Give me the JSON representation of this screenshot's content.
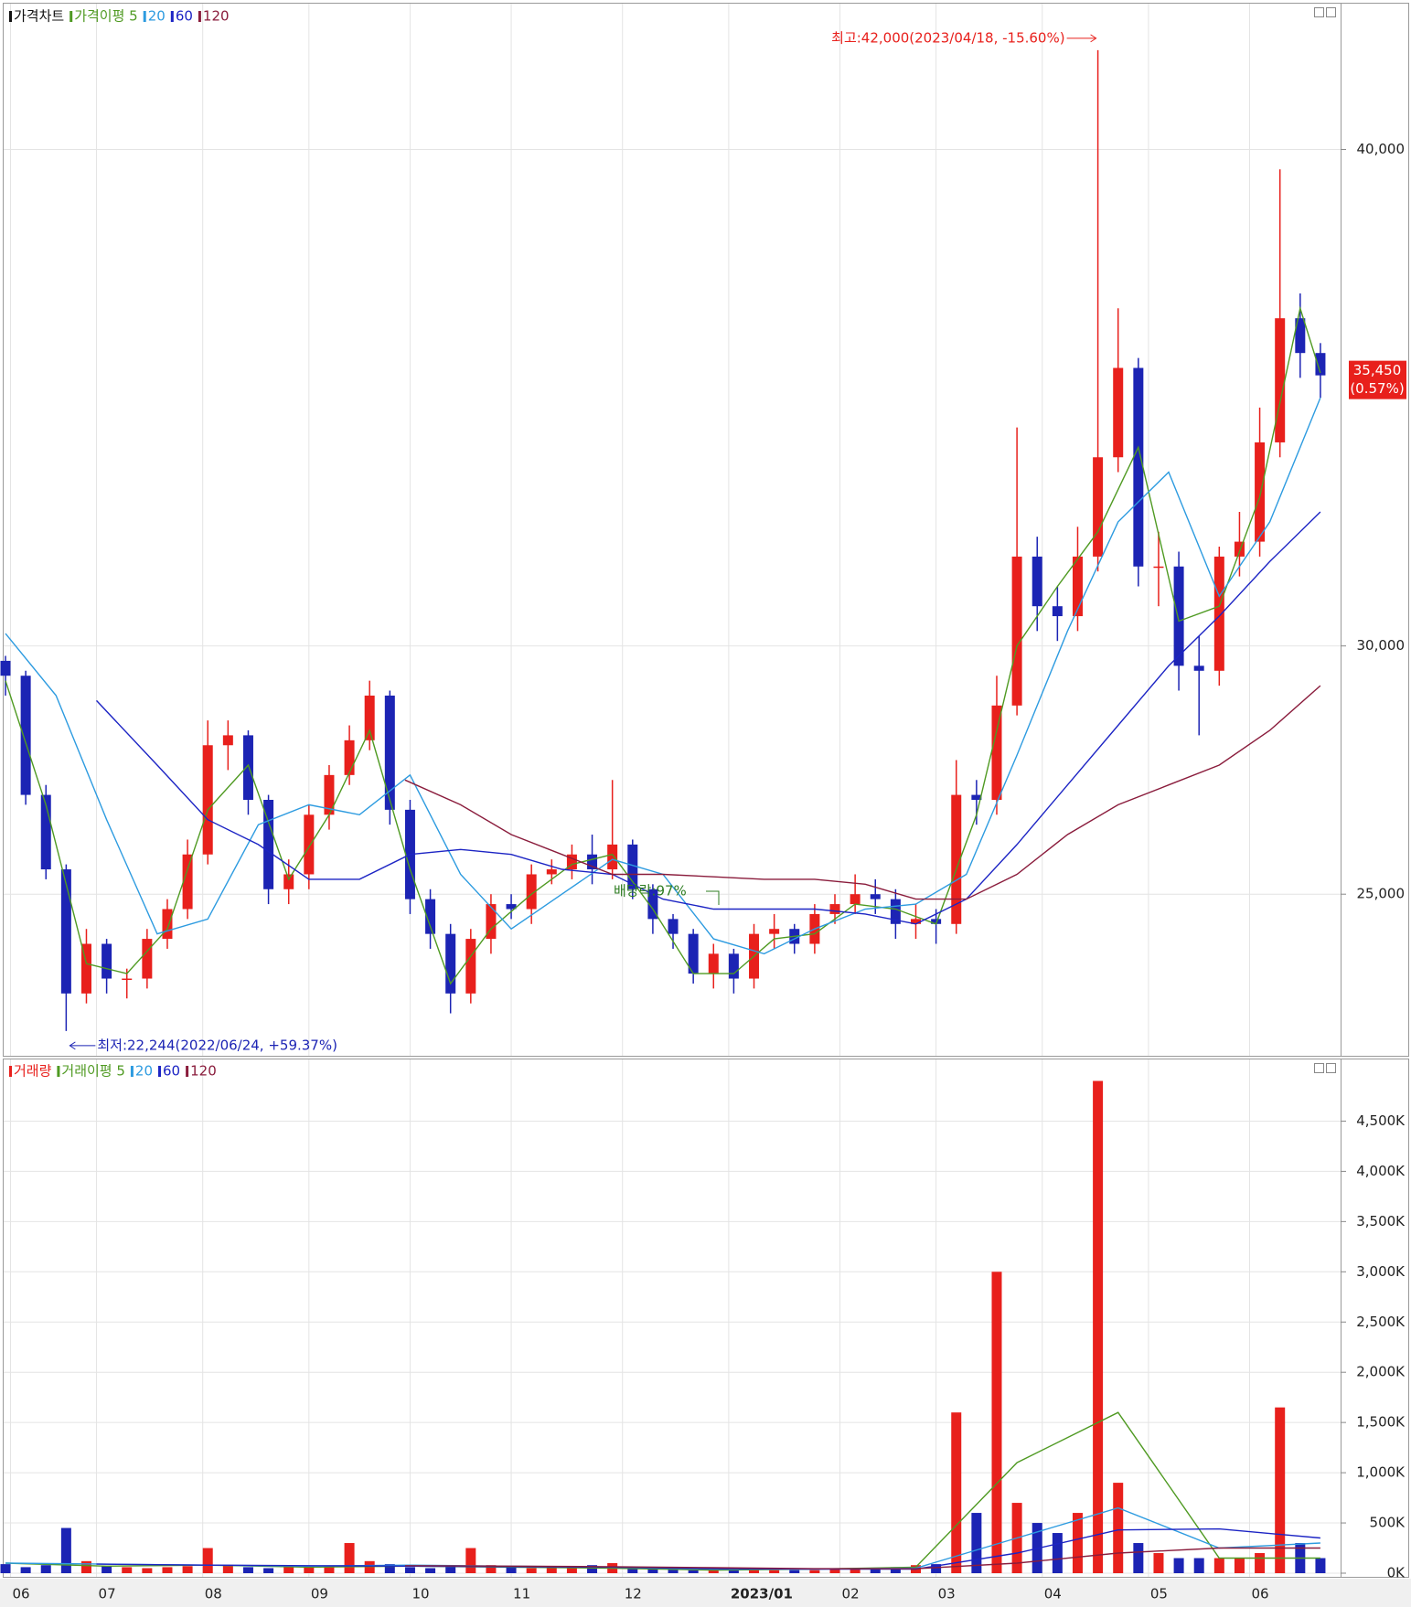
{
  "chart_data": [
    {
      "type": "candlestick",
      "name": "가격차트",
      "x": [
        0,
        4,
        8,
        12,
        16,
        20,
        24,
        28,
        32,
        36,
        40,
        44,
        48,
        52,
        56,
        60,
        64,
        68,
        72,
        76,
        80,
        84,
        88,
        92,
        96,
        100,
        104,
        108,
        112,
        116,
        120,
        124,
        128,
        132,
        136,
        140,
        144,
        148,
        152,
        156,
        160,
        164,
        168,
        172,
        176,
        180,
        184,
        188,
        192,
        196,
        200,
        204,
        208,
        212,
        216,
        220,
        224,
        228,
        232,
        236,
        240,
        244,
        248,
        252,
        256,
        260
      ],
      "open": [
        29700,
        29400,
        27000,
        25500,
        23000,
        24000,
        23300,
        23300,
        24100,
        24700,
        25800,
        28000,
        28200,
        26900,
        25100,
        25400,
        26600,
        27400,
        28100,
        29000,
        26700,
        24900,
        24200,
        23000,
        24100,
        24800,
        24700,
        25400,
        25500,
        25800,
        25500,
        26000,
        25100,
        24500,
        24200,
        23400,
        23800,
        23300,
        24200,
        24300,
        24000,
        24600,
        24800,
        25000,
        24900,
        24400,
        24500,
        24400,
        27000,
        26900,
        28800,
        31800,
        30800,
        30600,
        31800,
        33800,
        35600,
        31600,
        31600,
        29600,
        29500,
        31800,
        32100,
        34100,
        36600,
        35900
      ],
      "high": [
        29800,
        29500,
        27200,
        25600,
        24300,
        24100,
        23500,
        24300,
        24900,
        26100,
        28500,
        28500,
        28300,
        27000,
        25700,
        26800,
        27600,
        28400,
        29300,
        29100,
        26900,
        25100,
        24400,
        24300,
        25000,
        25000,
        25600,
        25700,
        26000,
        26200,
        27300,
        26100,
        25200,
        24600,
        24300,
        24000,
        23900,
        24400,
        24600,
        24400,
        24800,
        25000,
        25400,
        25300,
        25100,
        24800,
        24700,
        27700,
        27300,
        29400,
        34400,
        32200,
        31200,
        32400,
        42000,
        36800,
        35800,
        32300,
        31900,
        30200,
        32000,
        32700,
        34800,
        39600,
        37100,
        36100
      ],
      "low": [
        29000,
        26800,
        25300,
        22244,
        22800,
        23000,
        22900,
        23100,
        23900,
        24500,
        25600,
        27500,
        26600,
        24800,
        24800,
        25100,
        26300,
        27200,
        27900,
        26400,
        24600,
        23900,
        22600,
        22800,
        23800,
        24500,
        24400,
        25200,
        25300,
        25200,
        25300,
        24900,
        24200,
        23900,
        23200,
        23100,
        23000,
        23100,
        23900,
        23800,
        23800,
        24400,
        24600,
        24600,
        24100,
        24100,
        24000,
        24200,
        26400,
        26600,
        28600,
        30300,
        30100,
        30300,
        31500,
        33500,
        31200,
        30800,
        29100,
        28200,
        29200,
        31400,
        31800,
        33800,
        35400,
        35000
      ],
      "close": [
        29400,
        27000,
        25500,
        23000,
        24000,
        23300,
        23300,
        24100,
        24700,
        25800,
        28000,
        28200,
        26900,
        25100,
        25400,
        26600,
        27400,
        28100,
        29000,
        26700,
        24900,
        24200,
        23000,
        24100,
        24800,
        24700,
        25400,
        25500,
        25800,
        25500,
        26000,
        25100,
        24500,
        24200,
        23400,
        23800,
        23300,
        24200,
        24300,
        24000,
        24600,
        24800,
        25000,
        24900,
        24400,
        24500,
        24400,
        27000,
        26900,
        28800,
        31800,
        30800,
        30600,
        31800,
        33800,
        35600,
        31600,
        31600,
        29600,
        29500,
        31800,
        32100,
        34100,
        36600,
        35900,
        35450
      ],
      "up_color": "#e8201c",
      "down_color": "#1c24b4",
      "series": [
        {
          "name": "가격이평 5",
          "color": "#4f9a22",
          "x": [
            0,
            8,
            16,
            24,
            32,
            40,
            48,
            56,
            64,
            72,
            80,
            88,
            96,
            104,
            112,
            120,
            128,
            136,
            144,
            152,
            160,
            168,
            176,
            184,
            192,
            200,
            208,
            216,
            224,
            232,
            240,
            248,
            256,
            260
          ],
          "values": [
            29300,
            26800,
            23600,
            23400,
            24300,
            26700,
            27600,
            25300,
            26600,
            28300,
            25500,
            23200,
            24300,
            25000,
            25600,
            25800,
            24700,
            23400,
            23400,
            24100,
            24200,
            24800,
            24700,
            24400,
            26600,
            30000,
            31200,
            32300,
            34000,
            30500,
            30800,
            33000,
            36800,
            35500
          ]
        },
        {
          "name": "20",
          "color": "#2d9be0",
          "x": [
            0,
            10,
            20,
            30,
            40,
            50,
            60,
            70,
            80,
            90,
            100,
            110,
            120,
            130,
            140,
            150,
            160,
            170,
            180,
            190,
            200,
            210,
            220,
            230,
            240,
            250,
            260
          ],
          "values": [
            30250,
            29000,
            26500,
            24200,
            24500,
            26400,
            26800,
            26600,
            27400,
            25400,
            24300,
            25000,
            25700,
            25400,
            24100,
            23800,
            24300,
            24700,
            24800,
            25400,
            27800,
            30300,
            32500,
            33500,
            31000,
            32500,
            35000
          ]
        },
        {
          "name": "60",
          "color": "#1c24c4",
          "x": [
            18,
            30,
            40,
            50,
            60,
            70,
            80,
            90,
            100,
            110,
            120,
            130,
            140,
            150,
            160,
            170,
            180,
            190,
            200,
            210,
            220,
            230,
            240,
            250,
            260
          ],
          "values": [
            28900,
            27600,
            26500,
            26000,
            25300,
            25300,
            25800,
            25900,
            25800,
            25500,
            25400,
            24900,
            24700,
            24700,
            24700,
            24600,
            24400,
            24900,
            26000,
            27200,
            28400,
            29600,
            30600,
            31700,
            32700
          ]
        },
        {
          "name": "120",
          "color": "#8a1c3c",
          "x": [
            79,
            90,
            100,
            110,
            120,
            130,
            140,
            150,
            160,
            170,
            180,
            190,
            200,
            210,
            220,
            230,
            240,
            250,
            260
          ],
          "values": [
            27300,
            26800,
            26200,
            25800,
            25400,
            25400,
            25350,
            25300,
            25300,
            25200,
            24900,
            24900,
            25400,
            26200,
            26800,
            27200,
            27600,
            28300,
            29200
          ]
        }
      ],
      "xlim": [
        0,
        262
      ],
      "ylim": [
        21800,
        42900
      ],
      "yticks": [
        {
          "value": 25000,
          "label": "25,000"
        },
        {
          "value": 30000,
          "label": "30,000"
        },
        {
          "value": 40000,
          "label": "40,000"
        }
      ],
      "grid": true,
      "high_label": "최고:42,000(2023/04/18, -15.60%)",
      "low_label": "최저:22,244(2022/06/24, +59.37%)",
      "ex_dividend_label": "배당락:97%",
      "last_price": {
        "value": 35450,
        "label": "35,450"
      },
      "last_change": "(0.57%)"
    },
    {
      "type": "bar",
      "name": "거래량",
      "x": [
        0,
        4,
        8,
        12,
        16,
        20,
        24,
        28,
        32,
        36,
        40,
        44,
        48,
        52,
        56,
        60,
        64,
        68,
        72,
        76,
        80,
        84,
        88,
        92,
        96,
        100,
        104,
        108,
        112,
        116,
        120,
        124,
        128,
        132,
        136,
        140,
        144,
        148,
        152,
        156,
        160,
        164,
        168,
        172,
        176,
        180,
        184,
        188,
        192,
        196,
        200,
        204,
        208,
        212,
        216,
        220,
        224,
        228,
        232,
        236,
        240,
        244,
        248,
        252,
        256,
        260
      ],
      "values": [
        90,
        60,
        80,
        450,
        120,
        70,
        60,
        50,
        60,
        70,
        250,
        80,
        60,
        50,
        60,
        70,
        60,
        300,
        120,
        90,
        60,
        50,
        60,
        250,
        80,
        60,
        50,
        70,
        60,
        80,
        100,
        60,
        50,
        40,
        30,
        30,
        30,
        40,
        30,
        30,
        30,
        40,
        50,
        40,
        60,
        80,
        90,
        1600,
        600,
        3000,
        700,
        500,
        400,
        600,
        4900,
        900,
        300,
        200,
        150,
        150,
        150,
        150,
        200,
        1650,
        300,
        150
      ],
      "series": [
        {
          "name": "거래이평 5",
          "color": "#4f9a22",
          "x": [
            0,
            20,
            40,
            60,
            80,
            100,
            120,
            140,
            160,
            180,
            200,
            220,
            240,
            260
          ],
          "values": [
            100,
            70,
            80,
            60,
            70,
            60,
            50,
            30,
            40,
            60,
            1100,
            1600,
            150,
            150
          ]
        },
        {
          "name": "20",
          "color": "#2d9be0",
          "x": [
            0,
            20,
            40,
            60,
            80,
            100,
            120,
            140,
            160,
            180,
            200,
            220,
            240,
            260
          ],
          "values": [
            100,
            90,
            80,
            70,
            80,
            70,
            60,
            40,
            40,
            50,
            350,
            650,
            250,
            300
          ]
        },
        {
          "name": "60",
          "color": "#1c24c4",
          "x": [
            18,
            40,
            60,
            80,
            100,
            120,
            140,
            160,
            180,
            200,
            220,
            240,
            260
          ],
          "values": [
            90,
            80,
            75,
            70,
            65,
            60,
            45,
            40,
            40,
            200,
            430,
            440,
            350
          ]
        },
        {
          "name": "120",
          "color": "#8a1c3c",
          "x": [
            79,
            100,
            120,
            140,
            160,
            180,
            200,
            220,
            240,
            260
          ],
          "values": [
            75,
            70,
            65,
            55,
            45,
            45,
            100,
            200,
            250,
            250
          ]
        }
      ],
      "xlim": [
        0,
        262
      ],
      "ylim": [
        0,
        4950
      ],
      "yticks": [
        {
          "value": 0,
          "label": "0K"
        },
        {
          "value": 500,
          "label": "500K"
        },
        {
          "value": 1000,
          "label": "1,000K"
        },
        {
          "value": 1500,
          "label": "1,500K"
        },
        {
          "value": 2000,
          "label": "2,000K"
        },
        {
          "value": 2500,
          "label": "2,500K"
        },
        {
          "value": 3000,
          "label": "3,000K"
        },
        {
          "value": 3500,
          "label": "3,500K"
        },
        {
          "value": 4000,
          "label": "4,000K"
        },
        {
          "value": 4500,
          "label": "4,500K"
        }
      ],
      "xticks": [
        {
          "value": 1,
          "label": "06"
        },
        {
          "value": 18,
          "label": "07"
        },
        {
          "value": 39,
          "label": "08"
        },
        {
          "value": 60,
          "label": "09"
        },
        {
          "value": 80,
          "label": "10"
        },
        {
          "value": 100,
          "label": "11"
        },
        {
          "value": 122,
          "label": "12"
        },
        {
          "value": 143,
          "label": "2023/01"
        },
        {
          "value": 165,
          "label": "02"
        },
        {
          "value": 184,
          "label": "03"
        },
        {
          "value": 205,
          "label": "04"
        },
        {
          "value": 226,
          "label": "05"
        },
        {
          "value": 246,
          "label": "06"
        }
      ],
      "grid": true
    }
  ]
}
